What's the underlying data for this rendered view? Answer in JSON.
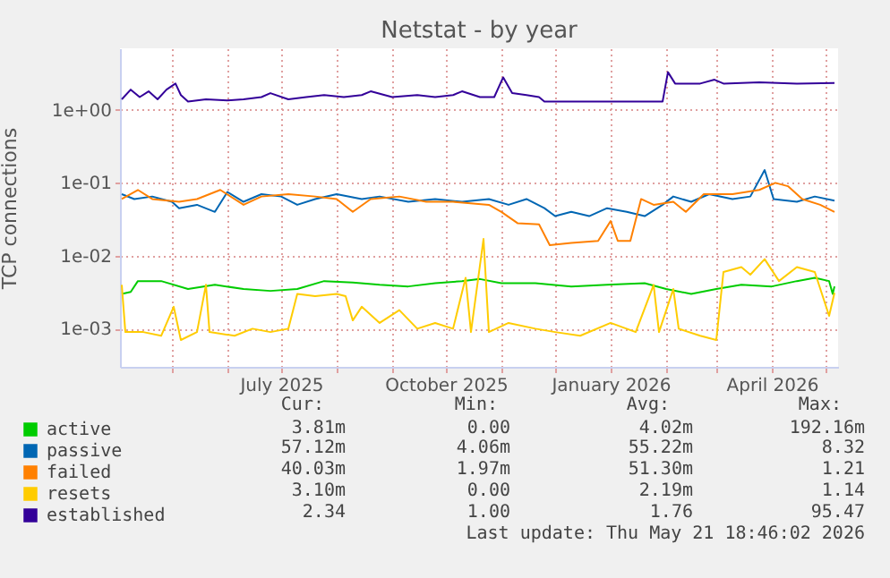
{
  "chart_data": {
    "type": "line",
    "title": "Netstat - by year",
    "ylabel": "TCP connections",
    "log": true,
    "grid": true,
    "legend": "bottom left",
    "line_style": "solid",
    "xlim": [
      "2025-04-02",
      "2026-05-08"
    ],
    "xticks": [
      {
        "value": "2025-05-01",
        "label": null
      },
      {
        "value": "2025-06-01",
        "label": null
      },
      {
        "value": "2025-07-01",
        "label": "July 2025"
      },
      {
        "value": "2025-08-01",
        "label": null
      },
      {
        "value": "2025-09-01",
        "label": null
      },
      {
        "value": "2025-10-01",
        "label": "October 2025"
      },
      {
        "value": "2025-11-01",
        "label": null
      },
      {
        "value": "2025-12-01",
        "label": null
      },
      {
        "value": "2026-01-01",
        "label": "January 2026"
      },
      {
        "value": "2026-02-01",
        "label": null
      },
      {
        "value": "2026-03-01",
        "label": null
      },
      {
        "value": "2026-04-01",
        "label": "April 2026"
      },
      {
        "value": "2026-05-01",
        "label": null
      }
    ],
    "ylim": [
      0.0003,
      7
    ],
    "yticks": [
      {
        "value": 0.001,
        "label": "1e-03"
      },
      {
        "value": 0.01,
        "label": "1e-02"
      },
      {
        "value": 0.1,
        "label": "1e-01"
      },
      {
        "value": 1,
        "label": "1e+00"
      }
    ],
    "annotations": [
      "Cur:",
      "Min:",
      "Avg:",
      "Max:",
      "3.81m",
      "0.00",
      "4.02m",
      "192.16m",
      "57.12m",
      "4.06m",
      "55.22m",
      "8.32",
      "40.03m",
      "1.97m",
      "51.30m",
      "1.21",
      "3.10m",
      "0.00",
      "2.19m",
      "1.14",
      "2.34",
      "1.00",
      "1.76",
      "95.47",
      "Last update: Thu May 21 18:46:02 2026"
    ],
    "series": [
      {
        "name": "active",
        "color": "#00cc00",
        "x": [
          "2025-04-03",
          "2025-04-08",
          "2025-04-12",
          "2025-04-25",
          "2025-05-10",
          "2025-05-25",
          "2025-06-10",
          "2025-06-25",
          "2025-07-10",
          "2025-07-25",
          "2025-08-10",
          "2025-08-25",
          "2025-09-10",
          "2025-09-25",
          "2025-10-10",
          "2025-10-20",
          "2025-11-01",
          "2025-11-20",
          "2025-12-10",
          "2025-12-30",
          "2026-01-20",
          "2026-02-01",
          "2026-02-15",
          "2026-03-01",
          "2026-03-15",
          "2026-04-01",
          "2026-04-15",
          "2026-04-25",
          "2026-05-03",
          "2026-05-05",
          "2026-05-06"
        ],
        "values": [
          0.003,
          0.0032,
          0.0045,
          0.0045,
          0.0035,
          0.004,
          0.0035,
          0.0033,
          0.0035,
          0.0045,
          0.0043,
          0.004,
          0.0038,
          0.0042,
          0.0045,
          0.0048,
          0.0042,
          0.0042,
          0.0038,
          0.004,
          0.0042,
          0.0035,
          0.003,
          0.0035,
          0.004,
          0.0038,
          0.0045,
          0.005,
          0.0045,
          0.003,
          0.0038
        ]
      },
      {
        "name": "passive",
        "color": "#0066b3",
        "x": [
          "2025-04-03",
          "2025-04-10",
          "2025-04-20",
          "2025-05-01",
          "2025-05-05",
          "2025-05-15",
          "2025-05-25",
          "2025-06-01",
          "2025-06-10",
          "2025-06-20",
          "2025-07-01",
          "2025-07-10",
          "2025-07-20",
          "2025-08-01",
          "2025-08-15",
          "2025-08-25",
          "2025-09-10",
          "2025-09-25",
          "2025-10-10",
          "2025-10-25",
          "2025-11-05",
          "2025-11-15",
          "2025-11-25",
          "2025-12-01",
          "2025-12-10",
          "2025-12-20",
          "2025-12-30",
          "2026-01-10",
          "2026-01-20",
          "2026-01-30",
          "2026-02-05",
          "2026-02-15",
          "2026-02-25",
          "2026-03-10",
          "2026-03-20",
          "2026-03-28",
          "2026-04-02",
          "2026-04-15",
          "2026-04-25",
          "2026-05-06"
        ],
        "values": [
          0.07,
          0.06,
          0.065,
          0.055,
          0.045,
          0.05,
          0.04,
          0.075,
          0.055,
          0.07,
          0.065,
          0.05,
          0.06,
          0.07,
          0.06,
          0.065,
          0.055,
          0.06,
          0.055,
          0.06,
          0.05,
          0.06,
          0.045,
          0.035,
          0.04,
          0.035,
          0.045,
          0.04,
          0.035,
          0.05,
          0.065,
          0.055,
          0.07,
          0.06,
          0.065,
          0.15,
          0.06,
          0.055,
          0.065,
          0.057
        ]
      },
      {
        "name": "failed",
        "color": "#ff8000",
        "x": [
          "2025-04-03",
          "2025-04-12",
          "2025-04-20",
          "2025-05-05",
          "2025-05-15",
          "2025-05-28",
          "2025-06-10",
          "2025-06-20",
          "2025-07-05",
          "2025-07-20",
          "2025-08-01",
          "2025-08-10",
          "2025-08-20",
          "2025-09-05",
          "2025-09-20",
          "2025-10-05",
          "2025-10-25",
          "2025-11-01",
          "2025-11-10",
          "2025-11-22",
          "2025-11-28",
          "2025-12-10",
          "2025-12-25",
          "2026-01-01",
          "2026-01-05",
          "2026-01-12",
          "2026-01-18",
          "2026-01-25",
          "2026-02-05",
          "2026-02-12",
          "2026-02-22",
          "2026-03-10",
          "2026-03-25",
          "2026-04-03",
          "2026-04-10",
          "2026-04-18",
          "2026-04-28",
          "2026-05-06"
        ],
        "values": [
          0.06,
          0.08,
          0.06,
          0.055,
          0.06,
          0.08,
          0.05,
          0.065,
          0.07,
          0.065,
          0.06,
          0.04,
          0.06,
          0.065,
          0.055,
          0.055,
          0.05,
          0.04,
          0.028,
          0.027,
          0.014,
          0.015,
          0.016,
          0.03,
          0.016,
          0.016,
          0.06,
          0.05,
          0.055,
          0.04,
          0.07,
          0.07,
          0.08,
          0.1,
          0.09,
          0.06,
          0.05,
          0.04
        ]
      },
      {
        "name": "resets",
        "color": "#ffcc00",
        "x": [
          "2025-04-03",
          "2025-04-05",
          "2025-04-15",
          "2025-04-25",
          "2025-05-02",
          "2025-05-06",
          "2025-05-15",
          "2025-05-20",
          "2025-05-22",
          "2025-06-05",
          "2025-06-15",
          "2025-06-25",
          "2025-07-05",
          "2025-07-10",
          "2025-07-20",
          "2025-08-01",
          "2025-08-06",
          "2025-08-10",
          "2025-08-15",
          "2025-08-25",
          "2025-09-05",
          "2025-09-15",
          "2025-09-25",
          "2025-10-05",
          "2025-10-12",
          "2025-10-15",
          "2025-10-22",
          "2025-10-25",
          "2025-11-05",
          "2025-11-20",
          "2025-12-01",
          "2025-12-15",
          "2026-01-01",
          "2026-01-15",
          "2026-01-25",
          "2026-01-28",
          "2026-02-05",
          "2026-02-08",
          "2026-02-20",
          "2026-03-01",
          "2026-03-05",
          "2026-03-15",
          "2026-03-20",
          "2026-03-28",
          "2026-04-05",
          "2026-04-15",
          "2026-04-25",
          "2026-05-03",
          "2026-05-06"
        ],
        "values": [
          0.004,
          0.0009,
          0.0009,
          0.0008,
          0.002,
          0.0007,
          0.0009,
          0.004,
          0.0009,
          0.0008,
          0.001,
          0.0009,
          0.001,
          0.003,
          0.0028,
          0.003,
          0.0028,
          0.0013,
          0.002,
          0.0012,
          0.0018,
          0.001,
          0.0012,
          0.001,
          0.005,
          0.0009,
          0.017,
          0.0009,
          0.0012,
          0.001,
          0.0009,
          0.0008,
          0.0012,
          0.0009,
          0.004,
          0.0009,
          0.0035,
          0.001,
          0.0008,
          0.0007,
          0.006,
          0.007,
          0.0055,
          0.009,
          0.0045,
          0.007,
          0.006,
          0.0015,
          0.0031
        ]
      },
      {
        "name": "established",
        "color": "#330099",
        "x": [
          "2025-04-03",
          "2025-04-08",
          "2025-04-13",
          "2025-04-18",
          "2025-04-23",
          "2025-04-28",
          "2025-05-03",
          "2025-05-06",
          "2025-05-10",
          "2025-05-20",
          "2025-06-01",
          "2025-06-10",
          "2025-06-20",
          "2025-06-25",
          "2025-07-05",
          "2025-07-15",
          "2025-07-25",
          "2025-08-05",
          "2025-08-15",
          "2025-08-20",
          "2025-09-01",
          "2025-09-15",
          "2025-09-25",
          "2025-10-05",
          "2025-10-10",
          "2025-10-20",
          "2025-10-28",
          "2025-11-02",
          "2025-11-07",
          "2025-11-15",
          "2025-11-22",
          "2025-11-25",
          "2025-12-05",
          "2025-12-20",
          "2026-01-05",
          "2026-01-20",
          "2026-01-30",
          "2026-02-02",
          "2026-02-06",
          "2026-02-20",
          "2026-02-28",
          "2026-03-05",
          "2026-03-25",
          "2026-04-15",
          "2026-05-06"
        ],
        "values": [
          1.4,
          1.9,
          1.5,
          1.8,
          1.4,
          1.9,
          2.3,
          1.6,
          1.3,
          1.4,
          1.35,
          1.4,
          1.5,
          1.7,
          1.4,
          1.5,
          1.6,
          1.5,
          1.6,
          1.8,
          1.5,
          1.6,
          1.5,
          1.6,
          1.8,
          1.5,
          1.5,
          2.8,
          1.7,
          1.6,
          1.5,
          1.3,
          1.3,
          1.3,
          1.3,
          1.3,
          1.3,
          3.3,
          2.3,
          2.3,
          2.6,
          2.3,
          2.4,
          2.3,
          2.34
        ]
      }
    ]
  }
}
